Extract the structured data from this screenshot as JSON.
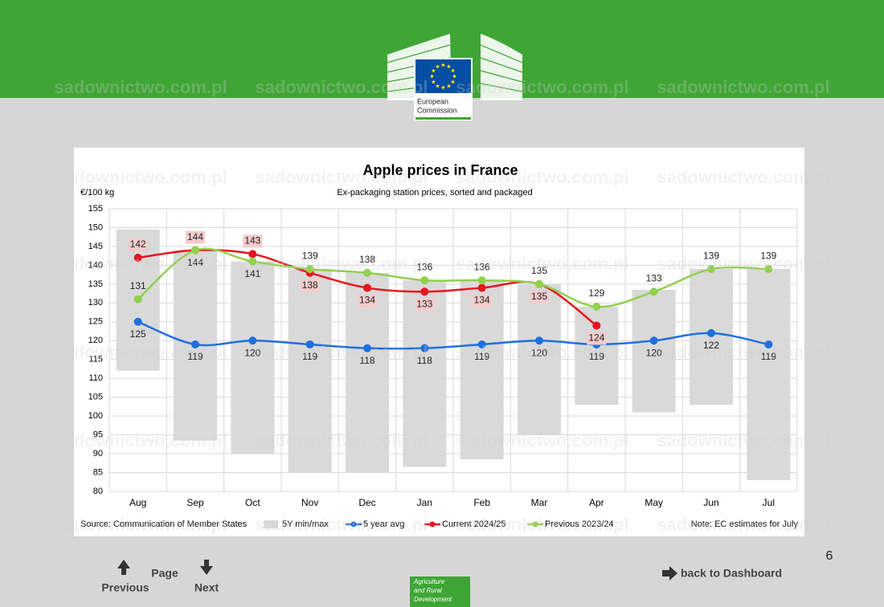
{
  "header": {
    "logo_text": [
      "European",
      "Commission"
    ]
  },
  "chart_data": {
    "type": "line",
    "title": "Apple prices in France",
    "subtitle": "Ex-packaging station prices, sorted and packaged",
    "y_label": "€/100 kg",
    "categories": [
      "Aug",
      "Sep",
      "Oct",
      "Nov",
      "Dec",
      "Jan",
      "Feb",
      "Mar",
      "Apr",
      "May",
      "Jun",
      "Jul"
    ],
    "ylim": [
      80,
      155
    ],
    "yticks": [
      80,
      85,
      90,
      95,
      100,
      105,
      110,
      115,
      120,
      125,
      130,
      135,
      140,
      145,
      150,
      155
    ],
    "grid": true,
    "range": {
      "name": "5Y min/max",
      "color": "#d9d9d9",
      "min": [
        112,
        93.5,
        90,
        85,
        85,
        86.5,
        88.5,
        95,
        103,
        101,
        103,
        83
      ],
      "max": [
        149.5,
        144,
        141,
        139,
        138,
        136,
        136,
        135,
        129,
        133.5,
        139,
        139
      ]
    },
    "series": [
      {
        "name": "5 year avg",
        "color": "#1f6fe0",
        "values": [
          125,
          119,
          120,
          119,
          118,
          118,
          119,
          120,
          119,
          120,
          122,
          119
        ]
      },
      {
        "name": "Current 2024/25",
        "color": "#e8141e",
        "values": [
          142,
          144,
          143,
          138,
          134,
          133,
          134,
          135,
          124,
          null,
          null,
          null
        ]
      },
      {
        "name": "Previous 2023/24",
        "color": "#92d050",
        "values": [
          131,
          144,
          141,
          139,
          138,
          136,
          136,
          135,
          129,
          133,
          139,
          139
        ]
      }
    ],
    "source": "Source: Communication of Member States",
    "note": "Note: EC estimates for July"
  },
  "footer": {
    "page": "Page",
    "previous": "Previous",
    "next": "Next",
    "dashboard": "back to Dashboard",
    "page_number": "6",
    "dg_lines": [
      "Agriculture",
      "and Rural",
      "Development"
    ]
  },
  "watermark": "sadownictwo.com.pl"
}
